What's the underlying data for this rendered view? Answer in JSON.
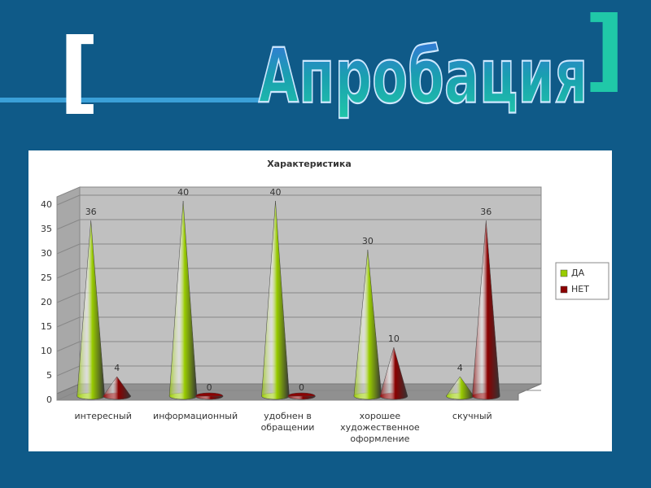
{
  "slide": {
    "title": "Апробация"
  },
  "chart_data": {
    "type": "cone3d",
    "title": "Характеристика",
    "categories": [
      "интересный",
      "информационный",
      "удобнен в обращении",
      "хорошее художественное оформление",
      "скучный"
    ],
    "series": [
      {
        "name": "ДА",
        "color": "#99cc00",
        "values": [
          36,
          40,
          40,
          30,
          4
        ]
      },
      {
        "name": "НЕТ",
        "color": "#8b0000",
        "values": [
          4,
          0,
          0,
          10,
          36
        ]
      }
    ],
    "ylim": [
      0,
      40
    ],
    "yticks": [
      0,
      5,
      10,
      15,
      20,
      25,
      30,
      35,
      40
    ],
    "grid": true,
    "legend": "right"
  }
}
